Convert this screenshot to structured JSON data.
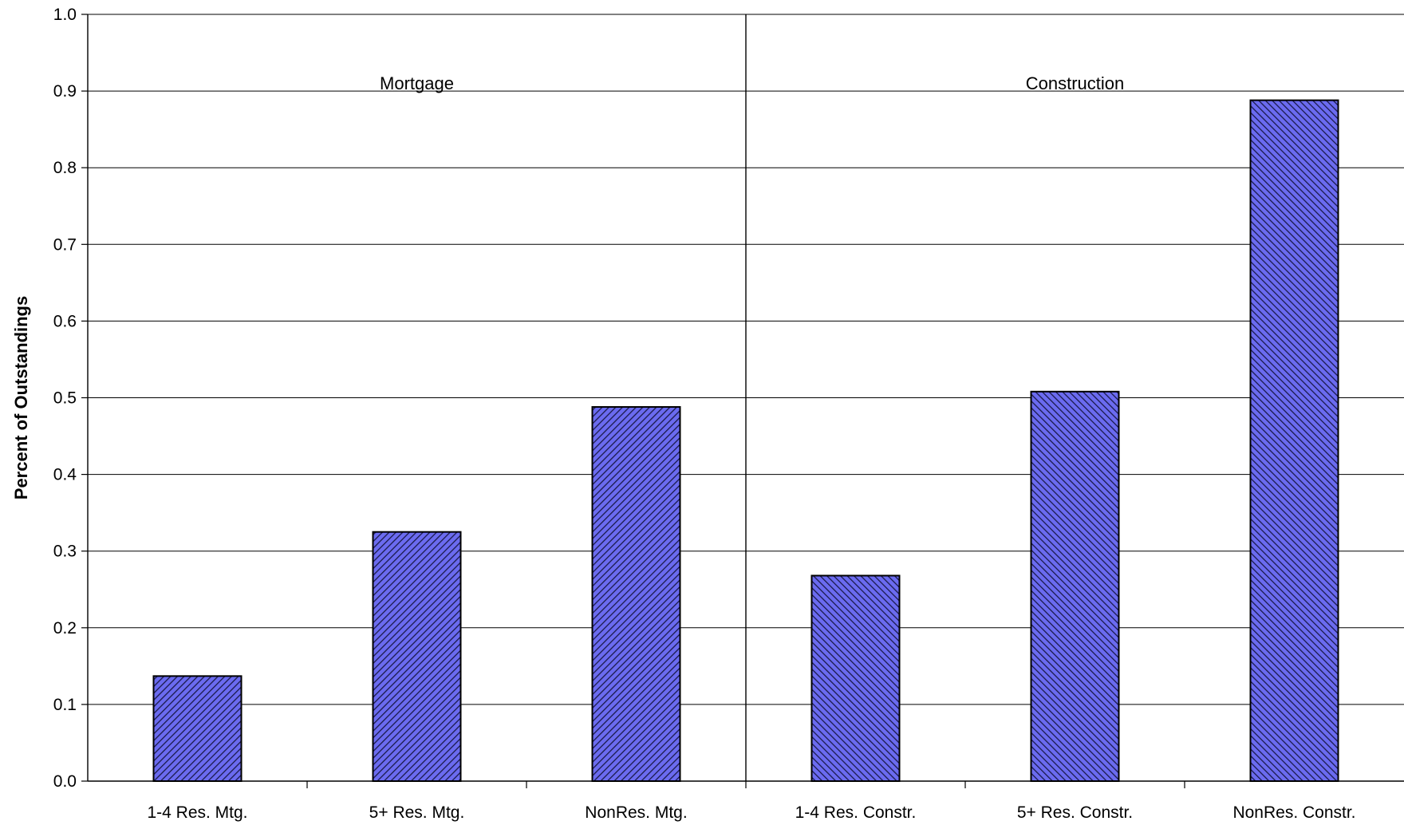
{
  "chart_data": {
    "type": "bar",
    "ylabel": "Percent of Outstandings",
    "ylim": [
      0,
      1.0
    ],
    "yticks": [
      "0.0",
      "0.1",
      "0.2",
      "0.3",
      "0.4",
      "0.5",
      "0.6",
      "0.7",
      "0.8",
      "0.9",
      "1.0"
    ],
    "grid": true,
    "categories": [
      "1-4 Res. Mtg.",
      "5+ Res. Mtg.",
      "NonRes. Mtg.",
      "1-4 Res. Constr.",
      "5+ Res. Constr.",
      "NonRes. Constr."
    ],
    "values": [
      0.137,
      0.325,
      0.488,
      0.268,
      0.508,
      0.888
    ],
    "groups": [
      {
        "label": "Mortgage",
        "categories": [
          "1-4 Res. Mtg.",
          "5+ Res. Mtg.",
          "NonRes. Mtg."
        ]
      },
      {
        "label": "Construction",
        "categories": [
          "1-4 Res. Constr.",
          "5+ Res. Constr.",
          "NonRes. Constr."
        ]
      }
    ],
    "colors": {
      "bar_fill": "#6b6bf0",
      "hatch": "#1a1a4a",
      "outline": "#000000",
      "grid": "#000000"
    },
    "patterns": [
      "diagonal-right",
      "diagonal-right",
      "diagonal-right",
      "diagonal-left",
      "diagonal-left",
      "diagonal-left"
    ]
  }
}
